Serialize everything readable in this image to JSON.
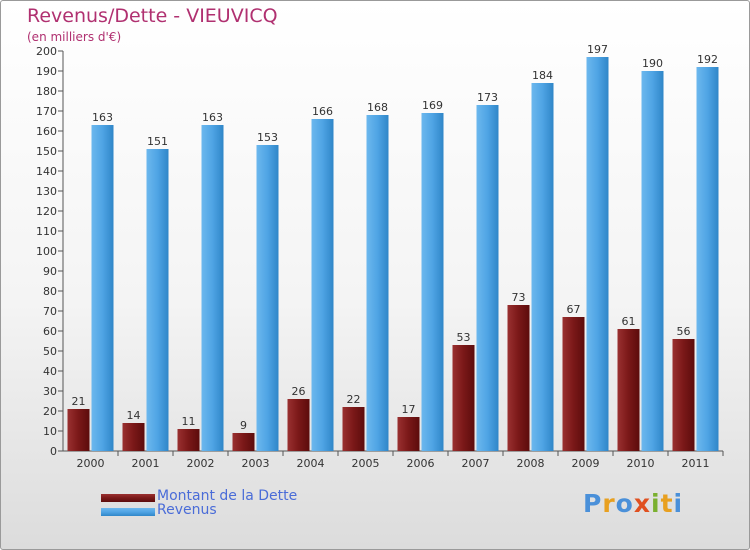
{
  "title": "Revenus/Dette - VIEUVICQ",
  "subtitle": "(en milliers d'€)",
  "colors": {
    "debt": "#7a1818",
    "revenue": "#4fa4e4",
    "title": "#b03070",
    "legend_text": "#4a6cd8"
  },
  "chart_data": {
    "type": "bar",
    "categories": [
      "2000",
      "2001",
      "2002",
      "2003",
      "2004",
      "2005",
      "2006",
      "2007",
      "2008",
      "2009",
      "2010",
      "2011"
    ],
    "series": [
      {
        "name": "Montant de la Dette",
        "values": [
          21,
          14,
          11,
          9,
          26,
          22,
          17,
          53,
          73,
          67,
          61,
          56
        ]
      },
      {
        "name": "Revenus",
        "values": [
          163,
          151,
          163,
          153,
          166,
          168,
          169,
          173,
          184,
          197,
          190,
          192
        ]
      }
    ],
    "ylim": [
      0,
      200
    ],
    "ytick_step": 10,
    "grid": false,
    "legend_position": "bottom-left"
  },
  "legend": [
    {
      "label": "Montant de la Dette"
    },
    {
      "label": "Revenus"
    }
  ],
  "logo": {
    "text": "Proxiti",
    "letter_colors": [
      "#4a90d9",
      "#e8a020",
      "#4a90d9",
      "#e05020",
      "#7ab030",
      "#e8a020",
      "#4a90d9"
    ]
  }
}
